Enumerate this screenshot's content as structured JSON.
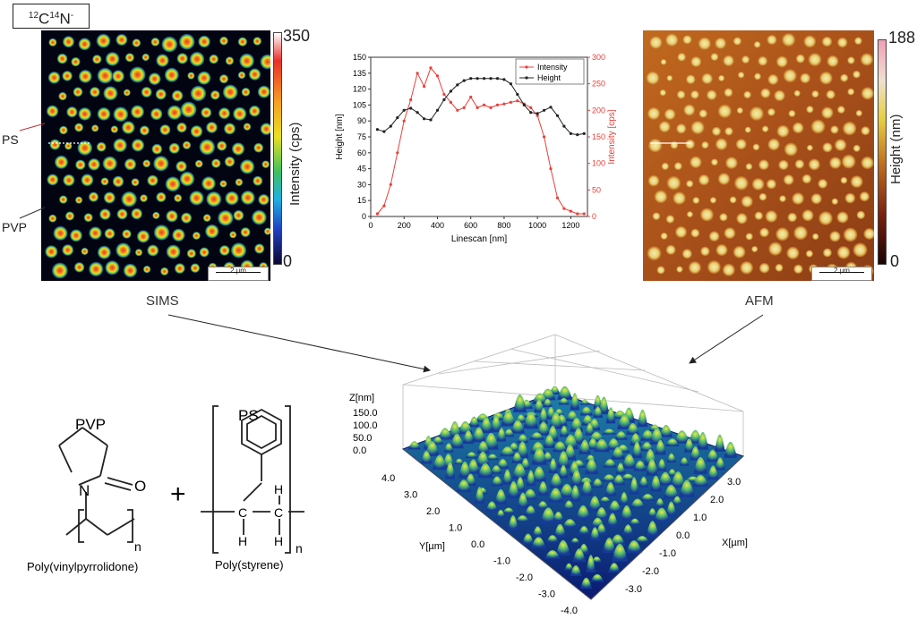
{
  "figure": {
    "ion_label": {
      "pre_sup1": "12",
      "c": "C",
      "pre_sup2": "14",
      "n": "N",
      "sup_minus": "-"
    },
    "sims": {
      "title": "SIMS",
      "colorbar": {
        "max": "350",
        "min": "0",
        "axis_label": "Intensity (cps)"
      },
      "scale_bar": "2 µm",
      "labels": {
        "ps": "PS",
        "pvp": "PVP"
      }
    },
    "afm": {
      "title": "AFM",
      "colorbar": {
        "max": "188",
        "min": "0",
        "axis_label": "Height (nm)"
      },
      "scale_bar": "2 µm"
    },
    "structures": {
      "pvp_title": "PVP",
      "pvp_caption": "Poly(vinylpyrrolidone)",
      "ps_title": "PS",
      "ps_caption": "Poly(styrene)",
      "plus": "+",
      "atom_n": "N",
      "atom_o": "O",
      "atom_c": "C",
      "atom_h": "H",
      "subscript_n": "n"
    },
    "surface3d": {
      "z_label": "Z[nm]",
      "x_label": "X[µm]",
      "y_label": "Y[µm]",
      "z_ticks": [
        "150.0",
        "100.0",
        "50.0",
        "0.0"
      ],
      "y_ticks": [
        "4.0",
        "3.0",
        "2.0",
        "1.0",
        "0.0",
        "-1.0",
        "-2.0",
        "-3.0",
        "-4.0"
      ],
      "x_ticks": [
        "3.0",
        "2.0",
        "1.0",
        "0.0",
        "-1.0",
        "-2.0",
        "-3.0"
      ]
    }
  },
  "chart_data": {
    "type": "line",
    "title": "",
    "xlabel": "Linescan [nm]",
    "ylabel": "Height [nm]",
    "y2label": "Intensity [cps]",
    "xlim": [
      0,
      1300
    ],
    "ylim": [
      0,
      150
    ],
    "y2lim": [
      0,
      300
    ],
    "x_ticks": [
      0,
      200,
      400,
      600,
      800,
      1000,
      1200
    ],
    "y_ticks": [
      0,
      15,
      30,
      45,
      60,
      75,
      90,
      105,
      120,
      135,
      150
    ],
    "y2_ticks": [
      0,
      50,
      100,
      150,
      200,
      250,
      300
    ],
    "legend_position": "top-right",
    "series": [
      {
        "name": "Intensity",
        "axis": "right",
        "color": "#e8403a",
        "x": [
          40,
          80,
          120,
          160,
          200,
          240,
          280,
          320,
          360,
          400,
          440,
          480,
          520,
          560,
          600,
          640,
          680,
          720,
          760,
          800,
          840,
          880,
          920,
          960,
          1000,
          1040,
          1080,
          1120,
          1160,
          1200,
          1240,
          1280
        ],
        "y": [
          5,
          20,
          60,
          120,
          180,
          220,
          270,
          245,
          280,
          265,
          230,
          215,
          200,
          205,
          225,
          205,
          210,
          205,
          210,
          212,
          215,
          218,
          212,
          205,
          190,
          150,
          90,
          35,
          15,
          10,
          5,
          5
        ]
      },
      {
        "name": "Height",
        "axis": "left",
        "color": "#222222",
        "x": [
          40,
          80,
          120,
          160,
          200,
          240,
          280,
          320,
          360,
          400,
          440,
          480,
          520,
          560,
          600,
          640,
          680,
          720,
          760,
          800,
          840,
          880,
          920,
          960,
          1000,
          1040,
          1080,
          1120,
          1160,
          1200,
          1240,
          1280
        ],
        "y": [
          82,
          80,
          85,
          93,
          100,
          102,
          98,
          92,
          91,
          100,
          110,
          118,
          124,
          128,
          130,
          130,
          130,
          130,
          130,
          129,
          125,
          115,
          105,
          98,
          97,
          100,
          103,
          95,
          85,
          78,
          77,
          78
        ]
      }
    ]
  }
}
